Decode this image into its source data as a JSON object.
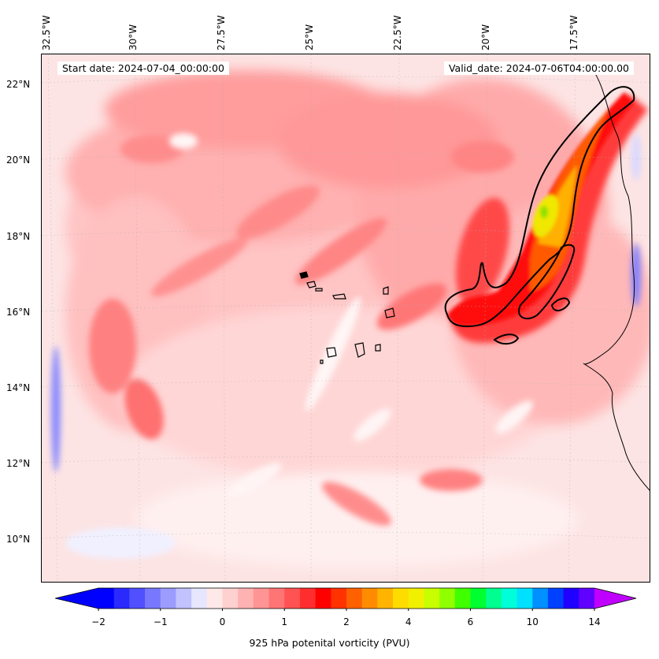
{
  "start_date": "Start date: 2024-07-04_00:00:00",
  "valid_date": "Valid_date: 2024-07-06T04:00:00.00",
  "lon_labels": [
    "32.5°W",
    "30°W",
    "27.5°W",
    "25°W",
    "22.5°W",
    "20°W",
    "17.5°W"
  ],
  "lat_labels": [
    "22°N",
    "20°N",
    "18°N",
    "16°N",
    "14°N",
    "12°N",
    "10°N"
  ],
  "colorbar": {
    "label": "925 hPa potenital vorticity (PVU)",
    "ticks": [
      "−2",
      "−1",
      "0",
      "1",
      "2",
      "4",
      "6",
      "10",
      "14"
    ],
    "colors": [
      "#0000ff",
      "#2a2aff",
      "#5050ff",
      "#7878ff",
      "#9c9cff",
      "#c2c2ff",
      "#e6e6ff",
      "#ffe8e8",
      "#ffd0d0",
      "#ffb2b2",
      "#ff9494",
      "#ff7474",
      "#ff5252",
      "#ff2e2e",
      "#ff0000",
      "#ff3200",
      "#ff6000",
      "#ff8c00",
      "#ffb400",
      "#ffdc00",
      "#f0f000",
      "#c8ff00",
      "#90ff00",
      "#40ff00",
      "#00ff30",
      "#00ff90",
      "#00ffd8",
      "#00e0ff",
      "#0090ff",
      "#0040ff",
      "#2000ff",
      "#6000ff"
    ],
    "extend_low": "#0000ff",
    "extend_high": "#c000ff"
  }
}
